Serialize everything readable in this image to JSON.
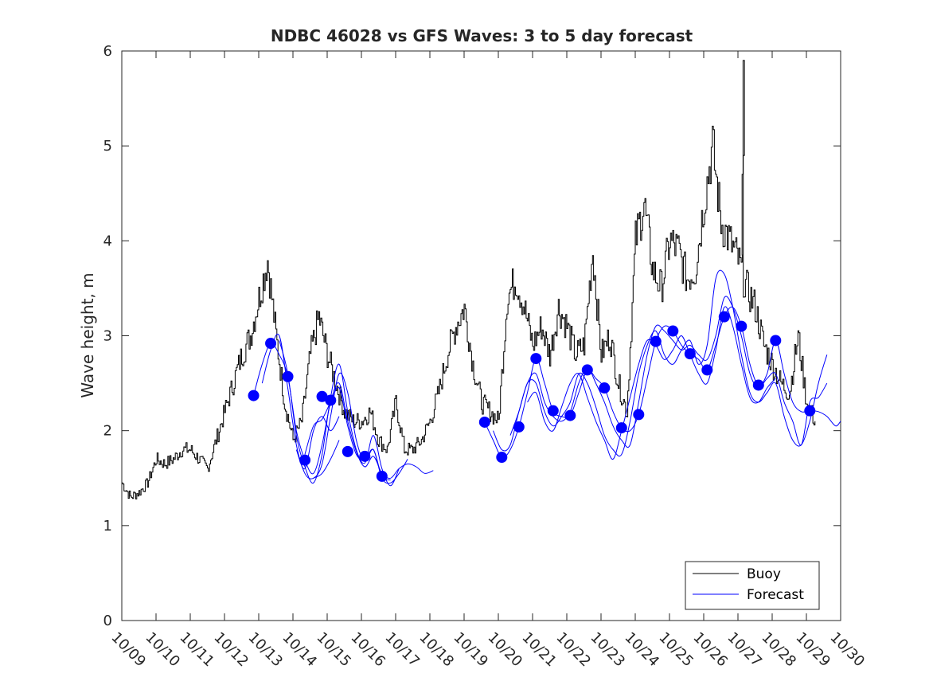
{
  "chart_data": {
    "type": "line",
    "title": "NDBC 46028 vs GFS Waves: 3 to 5 day forecast",
    "xlabel": "",
    "ylabel": "Wave height, m",
    "xlim": [
      0,
      21
    ],
    "ylim": [
      0,
      6
    ],
    "yticks": [
      0,
      1,
      2,
      3,
      4,
      5,
      6
    ],
    "xtick_labels": [
      "10/09",
      "10/10",
      "10/11",
      "10/12",
      "10/13",
      "10/14",
      "10/15",
      "10/16",
      "10/17",
      "10/18",
      "10/19",
      "10/20",
      "10/21",
      "10/22",
      "10/23",
      "10/24",
      "10/25",
      "10/26",
      "10/27",
      "10/28",
      "10/29",
      "10/30"
    ],
    "x_units": "days since 10/09 00:00",
    "legend": {
      "placement": "bottom-right",
      "entries": [
        "Buoy",
        "Forecast"
      ]
    },
    "colors": {
      "buoy": "#000000",
      "forecast": "#0000ff",
      "axes": "#262626"
    },
    "buoy": {
      "name": "Buoy",
      "x": [
        0,
        0.25,
        0.5,
        0.75,
        1,
        1.25,
        1.5,
        1.75,
        2,
        2.25,
        2.5,
        2.75,
        3,
        3.25,
        3.5,
        3.75,
        4,
        4.25,
        4.5,
        4.75,
        5,
        5.25,
        5.5,
        5.75,
        6,
        6.25,
        6.5,
        6.75,
        7,
        7.25,
        7.5,
        7.75,
        8,
        8.25,
        8.5,
        8.75,
        9,
        9.25,
        9.5,
        9.75,
        10,
        10.25,
        10.5,
        10.75,
        11,
        11.25,
        11.5,
        11.75,
        12,
        12.25,
        12.5,
        12.75,
        13,
        13.25,
        13.5,
        13.75,
        14,
        14.25,
        14.5,
        14.75,
        15,
        15.25,
        15.5,
        15.75,
        16,
        16.25,
        16.5,
        16.75,
        17,
        17.25,
        17.5,
        17.75,
        18,
        18.25,
        18.5,
        18.75,
        19,
        19.25,
        19.5,
        19.75,
        20,
        20.25
      ],
      "values": [
        1.45,
        1.3,
        1.35,
        1.45,
        1.7,
        1.65,
        1.7,
        1.8,
        1.8,
        1.7,
        1.6,
        1.9,
        2.2,
        2.5,
        2.8,
        3.0,
        3.4,
        3.8,
        3.0,
        2.3,
        1.9,
        2.1,
        2.8,
        3.2,
        2.8,
        2.5,
        2.2,
        2.1,
        2.1,
        2.2,
        1.9,
        1.8,
        2.3,
        1.8,
        1.8,
        1.9,
        2.1,
        2.4,
        2.8,
        3.1,
        3.3,
        2.7,
        2.3,
        2.2,
        2.1,
        3.4,
        3.6,
        3.3,
        2.9,
        3.1,
        2.8,
        3.3,
        3.1,
        2.8,
        2.9,
        3.9,
        2.8,
        3.0,
        2.5,
        2.2,
        4.0,
        4.4,
        3.7,
        3.5,
        4.0,
        3.9,
        3.6,
        3.7,
        4.4,
        5.0,
        4.2,
        4.0,
        3.8,
        3.5,
        3.3,
        2.9,
        2.7,
        2.5,
        2.4,
        3.0,
        2.3,
        2.1
      ]
    },
    "buoy_peak": {
      "x": 18.15,
      "value": 5.9
    },
    "forecast_markers": {
      "x": [
        3.85,
        4.35,
        4.85,
        5.35,
        5.85,
        6.1,
        6.6,
        7.1,
        7.6,
        10.6,
        11.1,
        11.6,
        12.1,
        12.6,
        13.1,
        13.6,
        14.1,
        14.6,
        15.1,
        15.6,
        16.1,
        16.6,
        17.1,
        17.6,
        18.1,
        18.6,
        19.1,
        20.1
      ],
      "values": [
        2.37,
        2.92,
        2.57,
        1.69,
        2.36,
        2.32,
        1.78,
        1.73,
        1.52,
        2.09,
        1.72,
        2.04,
        2.76,
        2.21,
        2.16,
        2.64,
        2.45,
        2.03,
        2.17,
        2.94,
        3.05,
        2.81,
        2.64,
        3.2,
        3.1,
        2.48,
        2.95,
        2.21
      ]
    },
    "forecast_lines": [
      {
        "x": [
          3.85,
          4.1,
          4.35,
          4.6,
          4.85,
          5.1,
          5.35,
          5.6,
          5.85,
          6.1,
          6.35,
          6.6,
          6.85,
          7.1,
          7.35,
          7.6,
          7.85,
          8.1,
          8.35,
          8.6,
          8.85,
          9.1
        ],
        "values": [
          2.37,
          2.7,
          2.92,
          2.8,
          2.57,
          2.0,
          1.69,
          1.55,
          1.85,
          2.3,
          2.5,
          2.1,
          1.78,
          1.62,
          1.73,
          1.55,
          1.5,
          1.6,
          1.65,
          1.62,
          1.55,
          1.58
        ]
      },
      {
        "x": [
          4.1,
          4.35,
          4.6,
          4.85,
          5.1,
          5.35,
          5.6,
          5.85,
          6.1,
          6.35,
          6.6,
          6.85,
          7.1,
          7.35,
          7.6,
          7.85,
          8.1,
          8.35
        ],
        "values": [
          2.5,
          2.85,
          3.0,
          2.45,
          1.85,
          1.55,
          1.5,
          1.65,
          2.15,
          2.6,
          2.4,
          1.9,
          1.68,
          1.8,
          1.5,
          1.45,
          1.55,
          1.7
        ]
      },
      {
        "x": [
          4.6,
          4.85,
          5.1,
          5.35,
          5.6,
          5.85,
          6.1,
          6.35,
          6.6,
          6.85,
          7.1,
          7.35,
          7.6,
          7.85,
          8.1
        ],
        "values": [
          2.95,
          2.6,
          1.95,
          1.62,
          1.45,
          1.75,
          2.35,
          2.7,
          2.2,
          1.8,
          1.66,
          1.95,
          1.6,
          1.42,
          1.6
        ]
      },
      {
        "x": [
          5.35,
          5.6,
          5.85,
          6.1,
          6.35,
          6.6,
          6.85,
          7.1,
          7.35,
          7.6,
          7.85
        ],
        "values": [
          1.75,
          2.05,
          2.12,
          2.3,
          2.45,
          2.05,
          1.75,
          1.7,
          1.8,
          1.52,
          1.48
        ]
      },
      {
        "x": [
          5.1,
          5.35,
          5.6,
          5.85,
          6.1,
          6.35
        ],
        "values": [
          1.8,
          1.6,
          2.0,
          2.15,
          2.0,
          2.15
        ]
      },
      {
        "x": [
          5.6,
          5.85,
          6.1,
          6.35
        ],
        "values": [
          1.5,
          1.55,
          1.7,
          1.9
        ]
      },
      {
        "x": [
          10.6,
          10.85,
          11.1,
          11.35,
          11.6,
          11.85,
          12.1,
          12.35,
          12.6,
          12.85,
          13.1,
          13.35,
          13.6,
          13.85,
          14.1,
          14.35,
          14.6,
          14.85,
          15.1,
          15.35,
          15.6,
          15.85,
          16.1,
          16.35,
          16.6,
          16.85,
          17.1,
          17.35,
          17.6,
          17.85,
          18.1,
          18.35,
          18.6,
          18.85,
          19.1,
          19.35,
          19.6,
          19.85,
          20.1,
          20.35,
          20.6,
          20.85,
          21.0
        ],
        "values": [
          2.09,
          1.9,
          1.72,
          1.8,
          2.04,
          2.4,
          2.76,
          2.5,
          2.21,
          2.15,
          2.16,
          2.4,
          2.64,
          2.55,
          2.45,
          2.2,
          2.03,
          2.0,
          2.17,
          2.55,
          2.94,
          3.1,
          3.05,
          2.9,
          2.81,
          2.75,
          2.64,
          2.9,
          3.2,
          3.3,
          3.1,
          2.7,
          2.48,
          2.6,
          2.95,
          2.6,
          2.3,
          2.2,
          2.21,
          2.2,
          2.15,
          2.05,
          2.1
        ]
      },
      {
        "x": [
          10.85,
          11.1,
          11.35,
          11.6,
          11.85,
          12.1,
          12.35,
          12.6,
          12.85,
          13.1,
          13.35,
          13.6,
          13.85,
          14.1,
          14.35,
          14.6,
          14.85,
          15.1,
          15.35,
          15.6,
          15.85,
          16.1,
          16.35,
          16.6,
          16.85,
          17.1,
          17.35,
          17.6,
          17.85,
          18.1,
          18.35,
          18.6,
          18.85,
          19.1,
          19.35,
          19.6,
          19.85,
          20.1,
          20.35,
          20.6
        ],
        "values": [
          2.0,
          1.8,
          1.85,
          2.2,
          2.5,
          2.6,
          2.3,
          2.15,
          2.1,
          2.2,
          2.5,
          2.66,
          2.5,
          2.3,
          2.05,
          1.9,
          1.85,
          2.3,
          2.8,
          3.1,
          3.05,
          2.95,
          2.85,
          2.9,
          2.8,
          2.75,
          3.0,
          3.4,
          3.3,
          3.0,
          2.6,
          2.45,
          2.55,
          2.6,
          2.3,
          2.1,
          1.85,
          2.3,
          2.35,
          2.5
        ]
      },
      {
        "x": [
          11.35,
          11.6,
          11.85,
          12.1,
          12.35,
          12.6,
          12.85,
          13.1,
          13.35,
          13.6,
          13.85,
          14.1,
          14.35,
          14.6,
          14.85,
          15.1,
          15.35,
          15.6,
          15.85,
          16.1,
          16.35,
          16.6,
          16.85,
          17.1,
          17.35,
          17.6,
          17.85,
          18.1,
          18.35,
          18.6,
          18.85,
          19.1,
          19.35,
          19.6,
          19.85,
          20.1,
          20.35,
          20.6
        ],
        "values": [
          1.95,
          2.2,
          2.5,
          2.5,
          2.2,
          2.05,
          2.15,
          2.3,
          2.6,
          2.5,
          2.25,
          1.95,
          1.8,
          1.75,
          2.1,
          2.6,
          2.9,
          3.05,
          2.8,
          2.7,
          2.85,
          2.95,
          2.7,
          2.9,
          3.6,
          3.65,
          3.3,
          2.8,
          2.4,
          2.3,
          2.4,
          2.5,
          2.15,
          1.9,
          1.85,
          2.1,
          2.5,
          2.8
        ]
      },
      {
        "x": [
          11.85,
          12.1,
          12.35,
          12.6,
          12.85,
          13.1,
          13.35,
          13.6,
          13.85,
          14.1,
          14.35,
          14.6,
          14.85,
          15.1,
          15.35,
          15.6,
          15.85,
          16.1,
          16.35,
          16.6,
          16.85,
          17.1,
          17.35,
          17.6,
          17.85,
          18.1,
          18.35,
          18.6,
          18.85,
          19.1
        ],
        "values": [
          2.3,
          2.4,
          2.1,
          2.0,
          2.25,
          2.5,
          2.6,
          2.35,
          2.1,
          1.9,
          1.7,
          2.0,
          2.35,
          2.7,
          2.95,
          2.9,
          2.75,
          2.85,
          3.0,
          2.8,
          2.6,
          2.5,
          2.85,
          3.3,
          3.1,
          2.7,
          2.35,
          2.3,
          2.45,
          2.55
        ]
      }
    ]
  }
}
